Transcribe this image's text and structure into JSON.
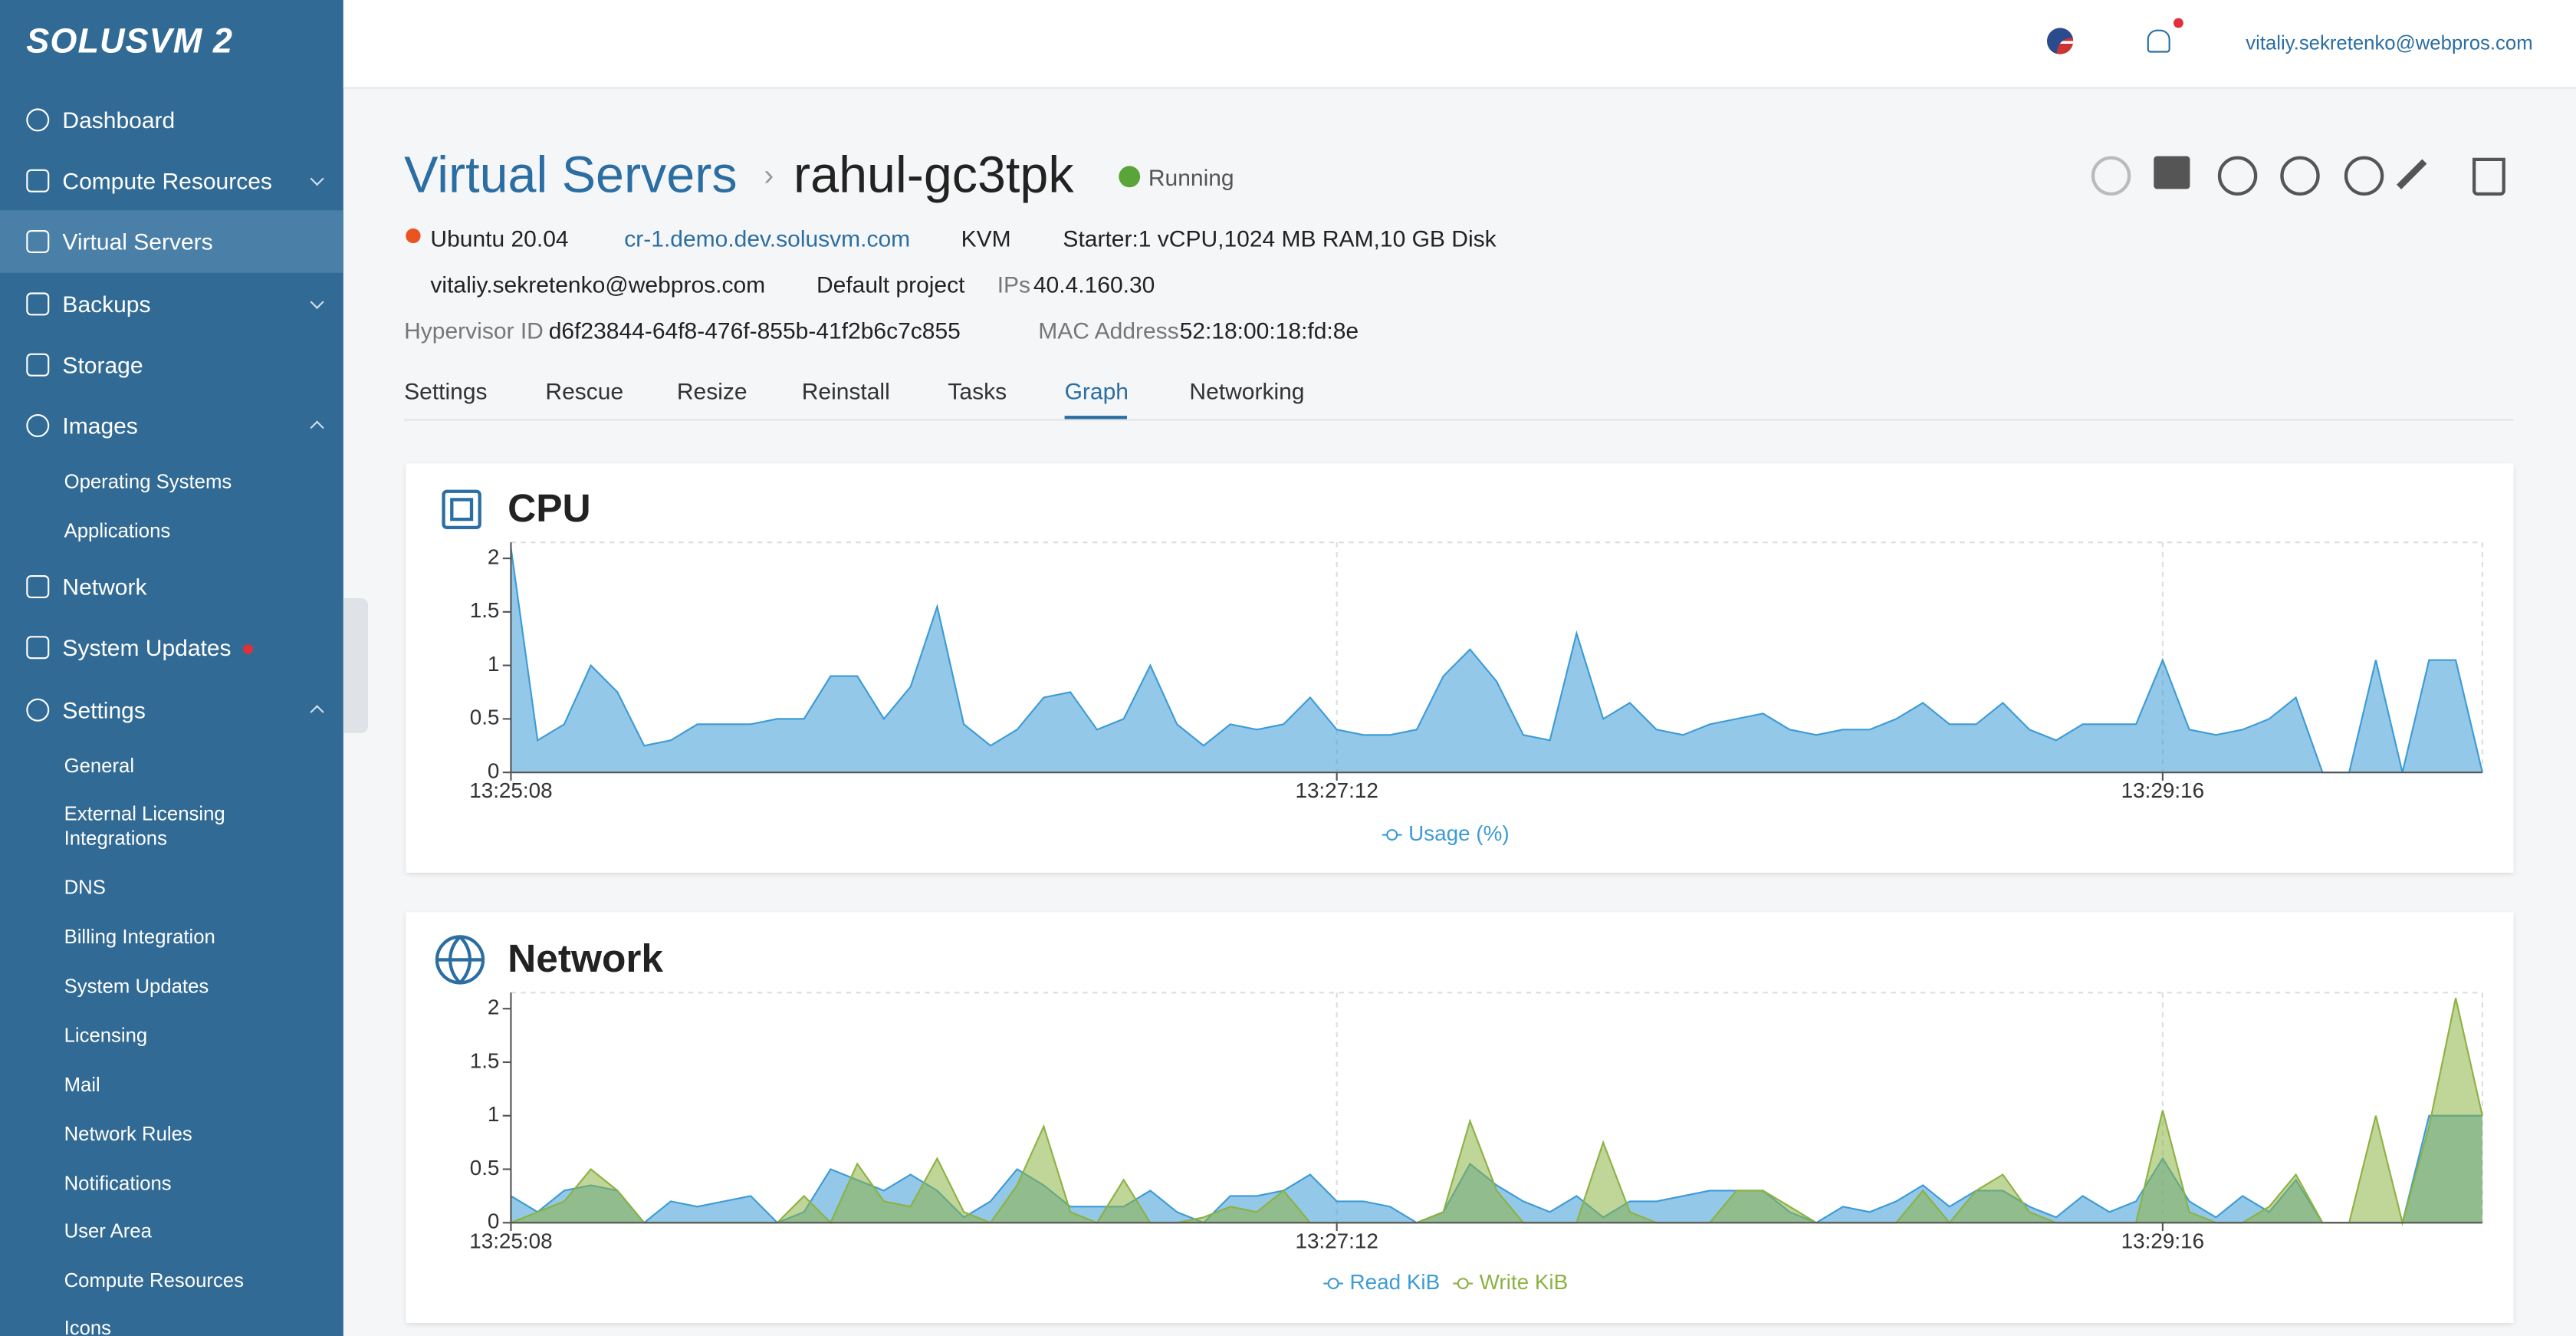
{
  "sidebar": {
    "logo": "SOLUSVM 2",
    "menu": [
      "Dashboard",
      "Compute Resources",
      "Virtual Servers",
      "Backups",
      "Storage",
      "Images",
      "Network",
      "System Updates",
      "Settings"
    ],
    "images_submenu": [
      "Operating Systems",
      "Applications"
    ],
    "settings_submenu": [
      "General",
      "External Licensing Integrations",
      "DNS",
      "Billing Integration",
      "System Updates",
      "Licensing",
      "Mail",
      "Network Rules",
      "Notifications",
      "User Area",
      "Compute Resources",
      "Icons"
    ]
  },
  "topbar": {
    "user": "vitaliy.sekretenko@webpros.com"
  },
  "server": {
    "breadcrumb": "Virtual Servers",
    "name": "rahul-gc3tpk",
    "status": "Running",
    "os": "Ubuntu 20.04",
    "node": "cr-1.demo.dev.solusvm.com",
    "virtualization": "KVM",
    "plan": "Starter:1 vCPU,1024 MB RAM,10 GB Disk",
    "owner": "vitaliy.sekretenko@webpros.com",
    "project": "Default project",
    "ips_label": "IPs",
    "ips": "40.4.160.30",
    "hypervisor_label": "Hypervisor ID",
    "hypervisor_id": "d6f23844-64f8-476f-855b-41f2b6c7c855",
    "mac_label": "MAC Address",
    "mac": "52:18:00:18:fd:8e"
  },
  "tabs": [
    "Settings",
    "Rescue",
    "Resize",
    "Reinstall",
    "Tasks",
    "Graph",
    "Networking"
  ],
  "chart_data": [
    {
      "type": "area",
      "title": "CPU",
      "categories": [
        "13:25:08",
        null,
        null,
        null,
        null,
        null,
        null,
        null,
        null,
        null,
        null,
        null,
        null,
        null,
        null,
        null,
        null,
        null,
        null,
        null,
        null,
        null,
        null,
        null,
        null,
        null,
        null,
        null,
        null,
        null,
        null,
        "13:27:12",
        null,
        null,
        null,
        null,
        null,
        null,
        null,
        null,
        null,
        null,
        null,
        null,
        null,
        null,
        null,
        null,
        null,
        null,
        null,
        null,
        null,
        null,
        null,
        null,
        null,
        null,
        null,
        null,
        null,
        null,
        "13:29:16",
        null,
        null,
        null,
        null,
        null,
        null,
        null,
        null,
        null,
        null,
        null,
        null
      ],
      "series": [
        {
          "name": "Usage (%)",
          "color": "#3d9bd6",
          "values": [
            2.1,
            0.3,
            0.45,
            1.0,
            0.75,
            0.25,
            0.3,
            0.45,
            0.45,
            0.45,
            0.5,
            0.5,
            0.9,
            0.9,
            0.5,
            0.8,
            1.55,
            0.45,
            0.25,
            0.4,
            0.7,
            0.75,
            0.4,
            0.5,
            1.0,
            0.45,
            0.25,
            0.45,
            0.4,
            0.45,
            0.7,
            0.4,
            0.35,
            0.35,
            0.4,
            0.9,
            1.15,
            0.85,
            0.35,
            0.3,
            1.3,
            0.5,
            0.65,
            0.4,
            0.35,
            0.45,
            0.5,
            0.55,
            0.4,
            0.35,
            0.4,
            0.4,
            0.5,
            0.65,
            0.45,
            0.45,
            0.65,
            0.4,
            0.3,
            0.45,
            0.45,
            0.45,
            1.05,
            0.4,
            0.35,
            0.4,
            0.5,
            0.7,
            0,
            0,
            1.05,
            0,
            1.05,
            1.05,
            0
          ]
        }
      ],
      "ylim": [
        0,
        2.15
      ],
      "yticks": [
        0,
        0.5,
        1,
        1.5,
        2
      ],
      "grid": true
    },
    {
      "type": "area",
      "title": "Network",
      "categories": [
        "13:25:08",
        null,
        null,
        null,
        null,
        null,
        null,
        null,
        null,
        null,
        null,
        null,
        null,
        null,
        null,
        null,
        null,
        null,
        null,
        null,
        null,
        null,
        null,
        null,
        null,
        null,
        null,
        null,
        null,
        null,
        null,
        "13:27:12",
        null,
        null,
        null,
        null,
        null,
        null,
        null,
        null,
        null,
        null,
        null,
        null,
        null,
        null,
        null,
        null,
        null,
        null,
        null,
        null,
        null,
        null,
        null,
        null,
        null,
        null,
        null,
        null,
        null,
        null,
        "13:29:16",
        null,
        null,
        null,
        null,
        null,
        null,
        null,
        null,
        null,
        null,
        null,
        null
      ],
      "series": [
        {
          "name": "Read KiB",
          "color": "#3d9bd6",
          "values": [
            0.25,
            0.1,
            0.3,
            0.35,
            0.3,
            0,
            0.2,
            0.15,
            0.2,
            0.25,
            0,
            0.1,
            0.5,
            0.4,
            0.3,
            0.45,
            0.3,
            0.05,
            0.2,
            0.5,
            0.35,
            0.15,
            0.15,
            0.15,
            0.3,
            0.1,
            0,
            0.25,
            0.25,
            0.3,
            0.45,
            0.2,
            0.2,
            0.15,
            0,
            0.1,
            0.55,
            0.35,
            0.2,
            0.1,
            0.25,
            0.05,
            0.2,
            0.2,
            0.25,
            0.3,
            0.3,
            0.3,
            0.1,
            0,
            0.15,
            0.1,
            0.2,
            0.35,
            0.15,
            0.3,
            0.3,
            0.15,
            0.05,
            0.25,
            0.1,
            0.2,
            0.6,
            0.2,
            0.05,
            0.25,
            0.1,
            0.4,
            0,
            0,
            0,
            0,
            1,
            1,
            1
          ]
        },
        {
          "name": "Write KiB",
          "color": "#8cb243",
          "values": [
            0,
            0.1,
            0.2,
            0.5,
            0.3,
            0,
            0,
            0,
            0,
            0,
            0,
            0.25,
            0,
            0.55,
            0.2,
            0.15,
            0.6,
            0.1,
            0,
            0.35,
            0.9,
            0.1,
            0,
            0.4,
            0,
            0,
            0.05,
            0.15,
            0.1,
            0.3,
            0,
            0,
            0,
            0,
            0,
            0.1,
            0.95,
            0.3,
            0,
            0,
            0,
            0.75,
            0.1,
            0,
            0,
            0,
            0.3,
            0.3,
            0.15,
            0,
            0,
            0,
            0,
            0.3,
            0,
            0.3,
            0.45,
            0.1,
            0,
            0,
            0,
            0,
            1.05,
            0.1,
            0,
            0,
            0.15,
            0.45,
            0,
            0,
            1,
            0,
            0.9,
            2.1,
            1
          ]
        }
      ],
      "ylim": [
        0,
        2.15
      ],
      "yticks": [
        0,
        0.5,
        1,
        1.5,
        2
      ],
      "grid": true
    }
  ]
}
